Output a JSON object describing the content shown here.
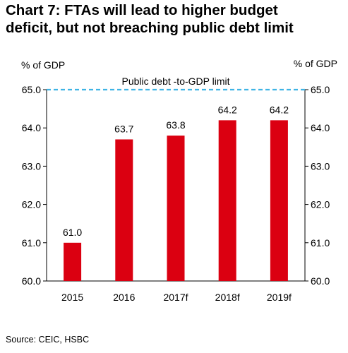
{
  "title_line1": "Chart 7: FTAs will lead to higher budget",
  "title_line2": "deficit, but not breaching public debt limit",
  "source": "Source: CEIC, HSBC",
  "chart_data": {
    "type": "bar",
    "categories": [
      "2015",
      "2016",
      "2017f",
      "2018f",
      "2019f"
    ],
    "values": [
      61.0,
      63.7,
      63.8,
      64.2,
      64.2
    ],
    "data_labels": [
      "61.0",
      "63.7",
      "63.8",
      "64.2",
      "64.2"
    ],
    "ylabel_left": "% of GDP",
    "ylabel_right": "% of GDP",
    "ylim": [
      60.0,
      65.0
    ],
    "yticks": [
      "60.0",
      "61.0",
      "62.0",
      "63.0",
      "64.0",
      "65.0"
    ],
    "reference_line": {
      "value": 65.0,
      "label": "Public debt -to-GDP limit",
      "style": "dashed"
    },
    "grid": false,
    "bar_color": "#db0011",
    "reference_color": "#3fb4e5"
  }
}
